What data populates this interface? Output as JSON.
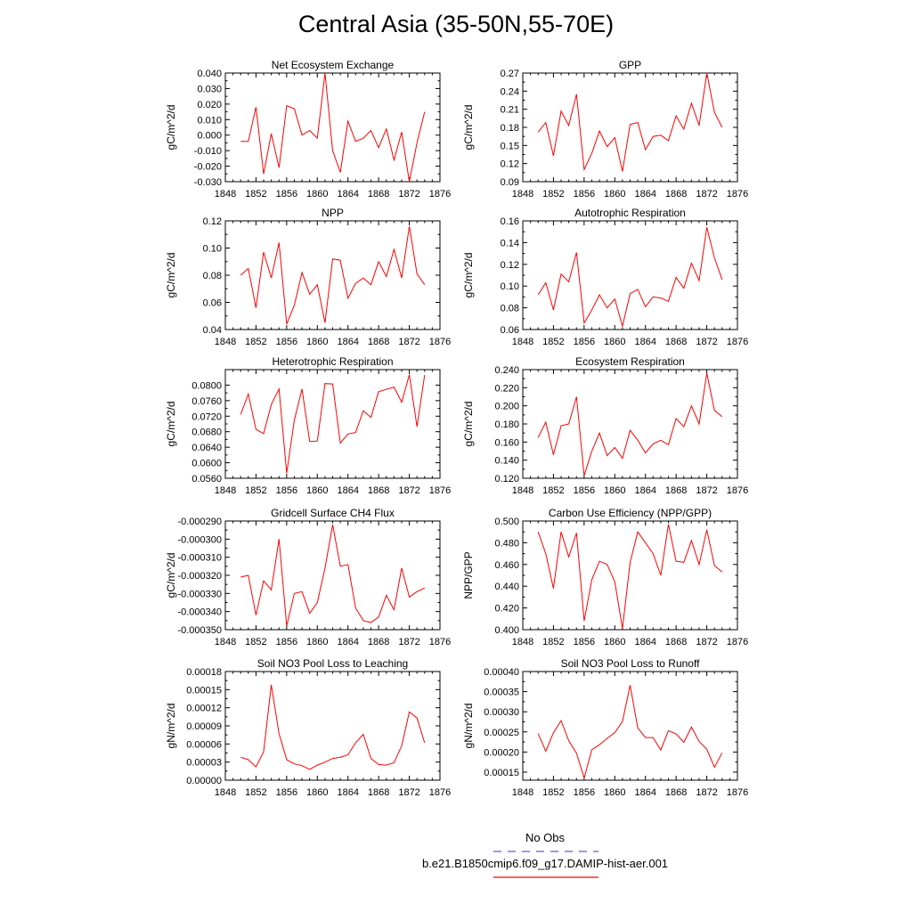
{
  "title": "Central Asia (35-50N,55-70E)",
  "colors": {
    "line": "#ff0000",
    "obs": "#5b5be0",
    "frame": "#000000"
  },
  "legend": {
    "obs_label": "No Obs",
    "model_label": "b.e21.B1850cmip6.f09_g17.DAMIP-hist-aer.001"
  },
  "chart_data": [
    {
      "type": "line",
      "title": "Net Ecosystem Exchange",
      "ylabel": "gC/m^2/d",
      "xlim": [
        1848,
        1876
      ],
      "xticks": [
        "1848",
        "1852",
        "1856",
        "1860",
        "1864",
        "1868",
        "1872",
        "1876"
      ],
      "ylim": [
        -0.03,
        0.04
      ],
      "yticks": [
        "-0.030",
        "-0.020",
        "-0.010",
        "0.000",
        "0.010",
        "0.020",
        "0.030",
        "0.040"
      ],
      "x": [
        1850,
        1851,
        1852,
        1853,
        1854,
        1855,
        1856,
        1857,
        1858,
        1859,
        1860,
        1861,
        1862,
        1863,
        1864,
        1865,
        1866,
        1867,
        1868,
        1869,
        1870,
        1871,
        1872,
        1873,
        1874
      ],
      "values": [
        -0.004,
        -0.004,
        0.018,
        -0.025,
        0.001,
        -0.021,
        0.019,
        0.017,
        0.0,
        0.003,
        -0.002,
        0.04,
        -0.01,
        -0.024,
        0.009,
        -0.004,
        -0.002,
        0.003,
        -0.008,
        0.004,
        -0.016,
        0.002,
        -0.03,
        -0.005,
        0.015
      ]
    },
    {
      "type": "line",
      "title": "GPP",
      "ylabel": "gC/m^2/d",
      "xlim": [
        1848,
        1876
      ],
      "xticks": [
        "1848",
        "1852",
        "1856",
        "1860",
        "1864",
        "1868",
        "1872",
        "1876"
      ],
      "ylim": [
        0.09,
        0.27
      ],
      "yticks": [
        "0.09",
        "0.12",
        "0.15",
        "0.18",
        "0.21",
        "0.24",
        "0.27"
      ],
      "x": [
        1850,
        1851,
        1852,
        1853,
        1854,
        1855,
        1856,
        1857,
        1858,
        1859,
        1860,
        1861,
        1862,
        1863,
        1864,
        1865,
        1866,
        1867,
        1868,
        1869,
        1870,
        1871,
        1872,
        1873,
        1874
      ],
      "values": [
        0.172,
        0.188,
        0.133,
        0.207,
        0.183,
        0.235,
        0.11,
        0.137,
        0.174,
        0.148,
        0.163,
        0.107,
        0.185,
        0.188,
        0.143,
        0.165,
        0.167,
        0.158,
        0.199,
        0.177,
        0.22,
        0.183,
        0.27,
        0.205,
        0.18
      ]
    },
    {
      "type": "line",
      "title": "NPP",
      "ylabel": "gC/m^2/d",
      "xlim": [
        1848,
        1876
      ],
      "xticks": [
        "1848",
        "1852",
        "1856",
        "1860",
        "1864",
        "1868",
        "1872",
        "1876"
      ],
      "ylim": [
        0.04,
        0.12
      ],
      "yticks": [
        "0.04",
        "0.06",
        "0.08",
        "0.10",
        "0.12"
      ],
      "x": [
        1850,
        1851,
        1852,
        1853,
        1854,
        1855,
        1856,
        1857,
        1858,
        1859,
        1860,
        1861,
        1862,
        1863,
        1864,
        1865,
        1866,
        1867,
        1868,
        1869,
        1870,
        1871,
        1872,
        1873,
        1874
      ],
      "values": [
        0.08,
        0.085,
        0.056,
        0.097,
        0.078,
        0.104,
        0.044,
        0.058,
        0.082,
        0.066,
        0.073,
        0.045,
        0.092,
        0.091,
        0.063,
        0.074,
        0.078,
        0.073,
        0.09,
        0.079,
        0.099,
        0.078,
        0.116,
        0.081,
        0.073
      ]
    },
    {
      "type": "line",
      "title": "Autotrophic Respiration",
      "ylabel": "gC/m^2/d",
      "xlim": [
        1848,
        1876
      ],
      "xticks": [
        "1848",
        "1852",
        "1856",
        "1860",
        "1864",
        "1868",
        "1872",
        "1876"
      ],
      "ylim": [
        0.06,
        0.16
      ],
      "yticks": [
        "0.06",
        "0.08",
        "0.10",
        "0.12",
        "0.14",
        "0.16"
      ],
      "x": [
        1850,
        1851,
        1852,
        1853,
        1854,
        1855,
        1856,
        1857,
        1858,
        1859,
        1860,
        1861,
        1862,
        1863,
        1864,
        1865,
        1866,
        1867,
        1868,
        1869,
        1870,
        1871,
        1872,
        1873,
        1874
      ],
      "values": [
        0.092,
        0.103,
        0.078,
        0.111,
        0.104,
        0.131,
        0.066,
        0.078,
        0.092,
        0.08,
        0.088,
        0.063,
        0.093,
        0.097,
        0.081,
        0.09,
        0.089,
        0.086,
        0.108,
        0.098,
        0.121,
        0.105,
        0.154,
        0.126,
        0.106
      ]
    },
    {
      "type": "line",
      "title": "Heterotrophic Respiration",
      "ylabel": "gC/m^2/d",
      "xlim": [
        1848,
        1876
      ],
      "xticks": [
        "1848",
        "1852",
        "1856",
        "1860",
        "1864",
        "1868",
        "1872",
        "1876"
      ],
      "ylim": [
        0.056,
        0.084
      ],
      "yticks": [
        "0.0560",
        "0.0600",
        "0.0640",
        "0.0680",
        "0.0720",
        "0.0760",
        "0.0800"
      ],
      "x": [
        1850,
        1851,
        1852,
        1853,
        1854,
        1855,
        1856,
        1857,
        1858,
        1859,
        1860,
        1861,
        1862,
        1863,
        1864,
        1865,
        1866,
        1867,
        1868,
        1869,
        1870,
        1871,
        1872,
        1873,
        1874
      ],
      "values": [
        0.0724,
        0.0777,
        0.0686,
        0.0675,
        0.075,
        0.079,
        0.0573,
        0.071,
        0.079,
        0.0655,
        0.0656,
        0.0804,
        0.0803,
        0.0651,
        0.0674,
        0.0678,
        0.0734,
        0.0717,
        0.0783,
        0.0789,
        0.0795,
        0.0756,
        0.0827,
        0.0693,
        0.0826
      ]
    },
    {
      "type": "line",
      "title": "Ecosystem Respiration",
      "ylabel": "gC/m^2/d",
      "xlim": [
        1848,
        1876
      ],
      "xticks": [
        "1848",
        "1852",
        "1856",
        "1860",
        "1864",
        "1868",
        "1872",
        "1876"
      ],
      "ylim": [
        0.12,
        0.24
      ],
      "yticks": [
        "0.120",
        "0.140",
        "0.160",
        "0.180",
        "0.200",
        "0.220",
        "0.240"
      ],
      "x": [
        1850,
        1851,
        1852,
        1853,
        1854,
        1855,
        1856,
        1857,
        1858,
        1859,
        1860,
        1861,
        1862,
        1863,
        1864,
        1865,
        1866,
        1867,
        1868,
        1869,
        1870,
        1871,
        1872,
        1873,
        1874
      ],
      "values": [
        0.165,
        0.182,
        0.146,
        0.178,
        0.18,
        0.21,
        0.123,
        0.15,
        0.17,
        0.145,
        0.154,
        0.142,
        0.173,
        0.162,
        0.148,
        0.158,
        0.162,
        0.157,
        0.186,
        0.177,
        0.2,
        0.18,
        0.236,
        0.195,
        0.188
      ]
    },
    {
      "type": "line",
      "title": "Gridcell Surface CH4 Flux",
      "ylabel": "gC/m^2/d",
      "xlim": [
        1848,
        1876
      ],
      "xticks": [
        "1848",
        "1852",
        "1856",
        "1860",
        "1864",
        "1868",
        "1872",
        "1876"
      ],
      "ylim": [
        -0.00035,
        -0.00029
      ],
      "yticks": [
        "-0.000350",
        "-0.000340",
        "-0.000330",
        "-0.000320",
        "-0.000310",
        "-0.000300",
        "-0.000290"
      ],
      "x": [
        1850,
        1851,
        1852,
        1853,
        1854,
        1855,
        1856,
        1857,
        1858,
        1859,
        1860,
        1861,
        1862,
        1863,
        1864,
        1865,
        1866,
        1867,
        1868,
        1869,
        1870,
        1871,
        1872,
        1873,
        1874
      ],
      "values": [
        -0.000321,
        -0.00032,
        -0.000342,
        -0.000323,
        -0.000328,
        -0.0003,
        -0.000348,
        -0.00033,
        -0.000329,
        -0.000341,
        -0.000335,
        -0.000316,
        -0.000292,
        -0.000315,
        -0.000314,
        -0.000338,
        -0.000345,
        -0.000346,
        -0.000343,
        -0.000331,
        -0.000339,
        -0.000316,
        -0.000332,
        -0.000329,
        -0.000327
      ]
    },
    {
      "type": "line",
      "title": "Carbon Use Efficiency (NPP/GPP)",
      "ylabel": "NPP/GPP",
      "xlim": [
        1848,
        1876
      ],
      "xticks": [
        "1848",
        "1852",
        "1856",
        "1860",
        "1864",
        "1868",
        "1872",
        "1876"
      ],
      "ylim": [
        0.4,
        0.5
      ],
      "yticks": [
        "0.400",
        "0.420",
        "0.440",
        "0.460",
        "0.480",
        "0.500"
      ],
      "x": [
        1850,
        1851,
        1852,
        1853,
        1854,
        1855,
        1856,
        1857,
        1858,
        1859,
        1860,
        1861,
        1862,
        1863,
        1864,
        1865,
        1866,
        1867,
        1868,
        1869,
        1870,
        1871,
        1872,
        1873,
        1874
      ],
      "values": [
        0.49,
        0.47,
        0.438,
        0.49,
        0.467,
        0.489,
        0.408,
        0.446,
        0.463,
        0.46,
        0.444,
        0.401,
        0.462,
        0.49,
        0.48,
        0.47,
        0.45,
        0.497,
        0.463,
        0.462,
        0.482,
        0.46,
        0.492,
        0.459,
        0.453
      ]
    },
    {
      "type": "line",
      "title": "Soil NO3 Pool Loss to Leaching",
      "ylabel": "gN/m^2/d",
      "xlim": [
        1848,
        1876
      ],
      "xticks": [
        "1848",
        "1852",
        "1856",
        "1860",
        "1864",
        "1868",
        "1872",
        "1876"
      ],
      "ylim": [
        0.0,
        0.00018
      ],
      "yticks": [
        "0.00000",
        "0.00003",
        "0.00006",
        "0.00009",
        "0.00012",
        "0.00015",
        "0.00018"
      ],
      "x": [
        1850,
        1851,
        1852,
        1853,
        1854,
        1855,
        1856,
        1857,
        1858,
        1859,
        1860,
        1861,
        1862,
        1863,
        1864,
        1865,
        1866,
        1867,
        1868,
        1869,
        1870,
        1871,
        1872,
        1873,
        1874
      ],
      "values": [
        3.8e-05,
        3.4e-05,
        2.2e-05,
        4.7e-05,
        0.000158,
        7.7e-05,
        3.4e-05,
        2.7e-05,
        2.4e-05,
        1.8e-05,
        2.5e-05,
        3e-05,
        3.6e-05,
        3.8e-05,
        4.2e-05,
        6.2e-05,
        7.6e-05,
        3.6e-05,
        2.6e-05,
        2.5e-05,
        2.9e-05,
        5.7e-05,
        0.000113,
        0.000103,
        6.2e-05
      ]
    },
    {
      "type": "line",
      "title": "Soil NO3 Pool Loss to Runoff",
      "ylabel": "gN/m^2/d",
      "xlim": [
        1848,
        1876
      ],
      "xticks": [
        "1848",
        "1852",
        "1856",
        "1860",
        "1864",
        "1868",
        "1872",
        "1876"
      ],
      "ylim": [
        0.00013,
        0.0004
      ],
      "yticks": [
        "0.00015",
        "0.00020",
        "0.00025",
        "0.00030",
        "0.00035",
        "0.00040"
      ],
      "x": [
        1850,
        1851,
        1852,
        1853,
        1854,
        1855,
        1856,
        1857,
        1858,
        1859,
        1860,
        1861,
        1862,
        1863,
        1864,
        1865,
        1866,
        1867,
        1868,
        1869,
        1870,
        1871,
        1872,
        1873,
        1874
      ],
      "values": [
        0.000246,
        0.000202,
        0.000248,
        0.000278,
        0.000228,
        0.000197,
        0.000135,
        0.000206,
        0.000218,
        0.000234,
        0.000248,
        0.000276,
        0.000366,
        0.00026,
        0.000236,
        0.000236,
        0.000205,
        0.000253,
        0.000245,
        0.000224,
        0.000262,
        0.000226,
        0.000207,
        0.000162,
        0.000198
      ]
    }
  ]
}
